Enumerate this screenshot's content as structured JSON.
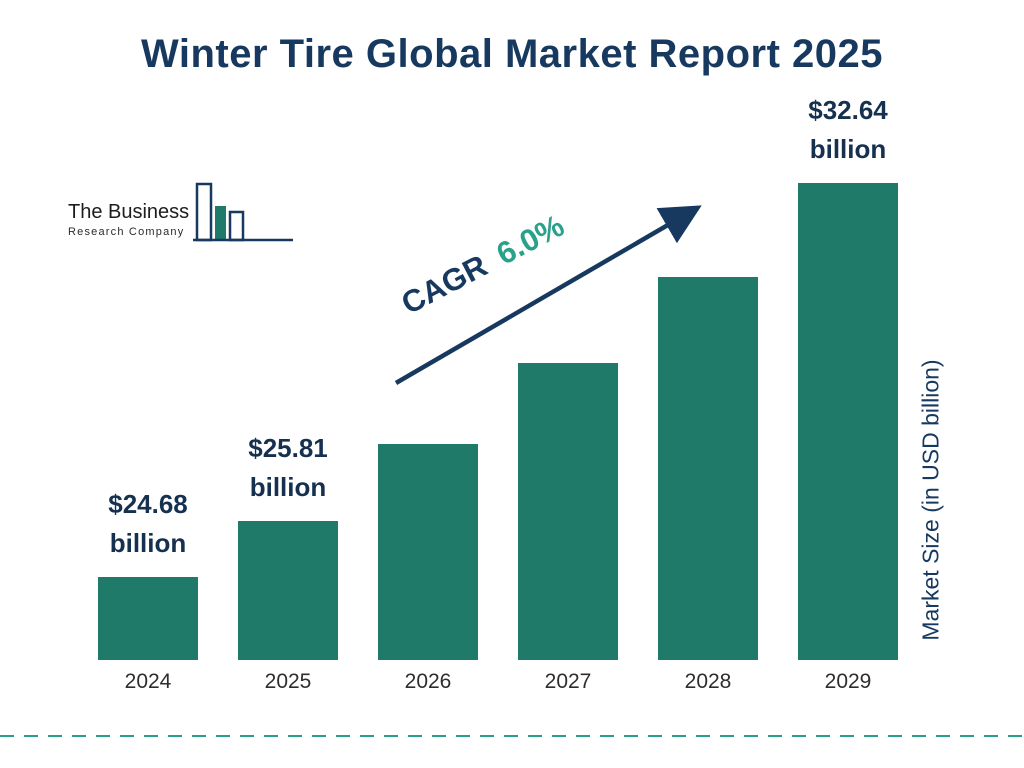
{
  "title": "Winter Tire Global Market Report 2025",
  "logo": {
    "line1": "The Business",
    "line2": "Research Company"
  },
  "cagr": {
    "label": "CAGR",
    "value": "6.0%"
  },
  "colors": {
    "navy": "#17395F",
    "bar": "#1F7A6A",
    "teal_text": "#2AA18B",
    "dash": "#2AA08C",
    "label": "#16304F"
  },
  "chart_data": {
    "type": "bar",
    "title": "Winter Tire Global Market Report 2025",
    "categories": [
      "2024",
      "2025",
      "2026",
      "2027",
      "2028",
      "2029"
    ],
    "values": [
      24.68,
      25.81,
      27.36,
      29.0,
      30.74,
      32.64
    ],
    "bar_labels": [
      [
        "$24.68",
        "billion"
      ],
      [
        "$25.81",
        "billion"
      ],
      null,
      null,
      null,
      [
        "$32.64",
        "billion"
      ]
    ],
    "labeled_values_note_visible": "only 2024, 2025 and 2029 bars carry data labels",
    "cagr": "6.0%",
    "xlabel": "",
    "ylabel": "Market Size (in USD billion)",
    "ylim": [
      23,
      32.7
    ],
    "grid": false,
    "legend": false,
    "bar_color": "#1F7A6A"
  }
}
